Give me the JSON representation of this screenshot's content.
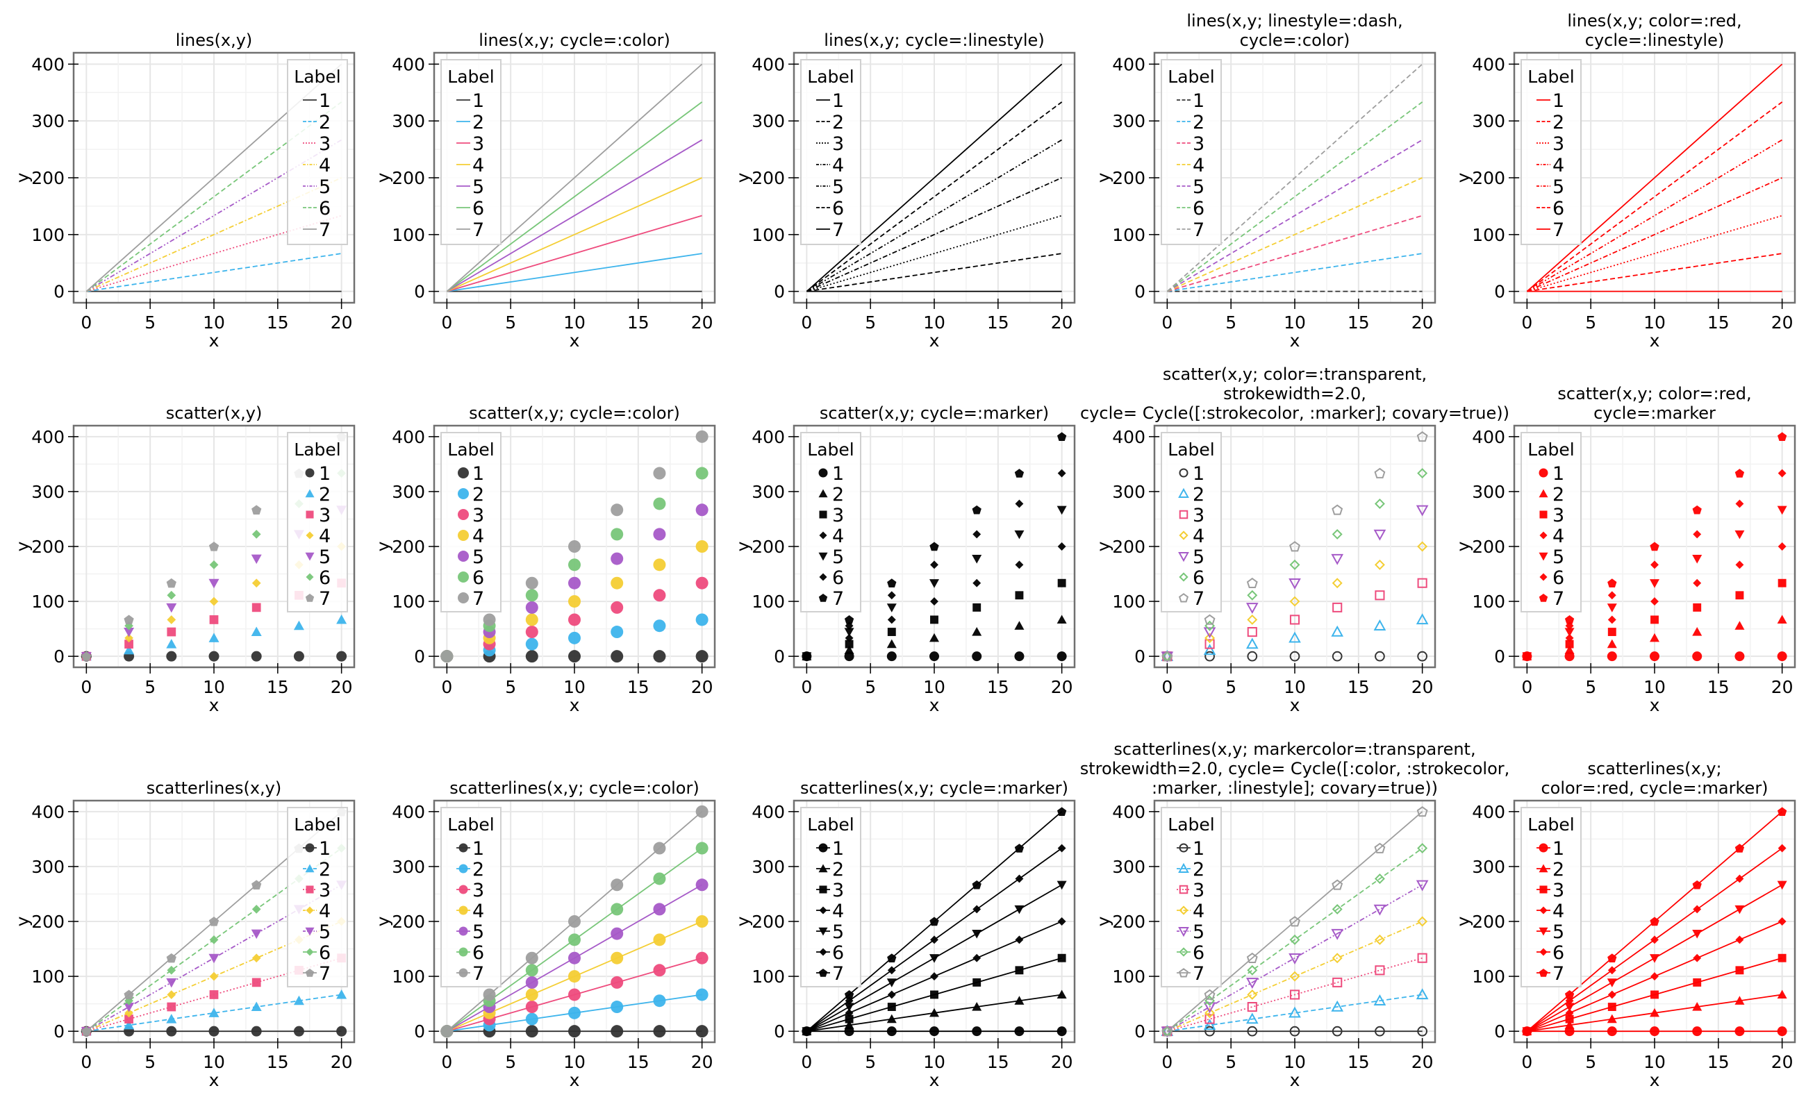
{
  "palette": [
    "#333333",
    "#3DB4EC",
    "#EE4B7D",
    "#F4CE34",
    "#A65AC8",
    "#78C679",
    "#9E9E9E"
  ],
  "red": "#FF0000",
  "black": "#000000",
  "chart_data": {
    "type": "line",
    "grid": true,
    "x": [
      0,
      3.333,
      6.667,
      10,
      13.333,
      16.667,
      20
    ],
    "series": [
      {
        "name": "1",
        "values": [
          0,
          0,
          0,
          0,
          0,
          0,
          0
        ]
      },
      {
        "name": "2",
        "values": [
          0,
          11.11,
          22.22,
          33.33,
          44.44,
          55.56,
          66.67
        ]
      },
      {
        "name": "3",
        "values": [
          0,
          22.22,
          44.44,
          66.67,
          88.89,
          111.11,
          133.33
        ]
      },
      {
        "name": "4",
        "values": [
          0,
          33.33,
          66.67,
          100,
          133.33,
          166.67,
          200
        ]
      },
      {
        "name": "5",
        "values": [
          0,
          44.44,
          88.89,
          133.33,
          177.78,
          222.22,
          266.67
        ]
      },
      {
        "name": "6",
        "values": [
          0,
          55.56,
          111.11,
          166.67,
          222.22,
          277.78,
          333.33
        ]
      },
      {
        "name": "7",
        "values": [
          0,
          66.67,
          133.33,
          200,
          266.67,
          333.33,
          400
        ]
      }
    ],
    "xlabel": "x",
    "ylabel": "y",
    "xlim": [
      -1,
      21
    ],
    "ylim": [
      -20,
      420
    ],
    "xticks": [
      0,
      5,
      10,
      15,
      20
    ],
    "yticks": [
      0,
      100,
      200,
      300,
      400
    ],
    "legend_title": "Label",
    "linestyle_cycle": [
      "solid",
      "dash",
      "dot",
      "dashdot",
      "dashdotdot",
      "dash",
      "solid"
    ],
    "marker_cycle": [
      "circle",
      "utriangle",
      "rect",
      "diamond",
      "dtriangle",
      "diamond",
      "pentagon"
    ],
    "subplots": [
      {
        "title": [
          "lines(x,y)"
        ],
        "kind": "lines",
        "color": "palette",
        "linestyle": "cycle",
        "marker": "none",
        "legend": "top-right"
      },
      {
        "title": [
          "lines(x,y; cycle=:color)"
        ],
        "kind": "lines",
        "color": "palette",
        "linestyle": "solid",
        "marker": "none",
        "legend": "top-left"
      },
      {
        "title": [
          "lines(x,y; cycle=:linestyle)"
        ],
        "kind": "lines",
        "color": "black",
        "linestyle": "cycle",
        "marker": "none",
        "legend": "top-left"
      },
      {
        "title": [
          "lines(x,y; linestyle=:dash,",
          "cycle=:color)"
        ],
        "kind": "lines",
        "color": "palette",
        "linestyle": "dash",
        "marker": "none",
        "legend": "top-left"
      },
      {
        "title": [
          "lines(x,y; color=:red,",
          "cycle=:linestyle)"
        ],
        "kind": "lines",
        "color": "red",
        "linestyle": "cycle",
        "marker": "none",
        "legend": "top-left"
      },
      {
        "title": [
          "scatter(x,y)"
        ],
        "kind": "scatter",
        "color": "palette",
        "linestyle": "none",
        "marker": "cycle",
        "fill": "solid",
        "legend": "top-right"
      },
      {
        "title": [
          "scatter(x,y; cycle=:color)"
        ],
        "kind": "scatter",
        "color": "palette",
        "linestyle": "none",
        "marker": "circle",
        "fill": "solid",
        "legend": "top-left"
      },
      {
        "title": [
          "scatter(x,y; cycle=:marker)"
        ],
        "kind": "scatter",
        "color": "black",
        "linestyle": "none",
        "marker": "cycle",
        "fill": "solid",
        "legend": "top-left"
      },
      {
        "title": [
          "scatter(x,y; color=:transparent,",
          "strokewidth=2.0,",
          "cycle= Cycle([:strokecolor, :marker]; covary=true))"
        ],
        "kind": "scatter",
        "color": "palette",
        "linestyle": "none",
        "marker": "cycle",
        "fill": "hollow",
        "legend": "top-left"
      },
      {
        "title": [
          "scatter(x,y; color=:red,",
          "cycle=:marker"
        ],
        "kind": "scatter",
        "color": "red",
        "linestyle": "none",
        "marker": "cycle",
        "fill": "solid",
        "legend": "top-left"
      },
      {
        "title": [
          "scatterlines(x,y)"
        ],
        "kind": "scatterlines",
        "color": "palette",
        "linestyle": "cycle",
        "marker": "cycle",
        "fill": "solid",
        "legend": "top-right"
      },
      {
        "title": [
          "scatterlines(x,y; cycle=:color)"
        ],
        "kind": "scatterlines",
        "color": "palette",
        "linestyle": "solid",
        "marker": "circle",
        "fill": "solid",
        "legend": "top-left"
      },
      {
        "title": [
          "scatterlines(x,y; cycle=:marker)"
        ],
        "kind": "scatterlines",
        "color": "black",
        "linestyle": "solid",
        "marker": "cycle",
        "fill": "solid",
        "legend": "top-left"
      },
      {
        "title": [
          "scatterlines(x,y; markercolor=:transparent,",
          "strokewidth=2.0, cycle= Cycle([:color, :strokecolor,",
          ":marker, :linestyle]; covary=true))"
        ],
        "kind": "scatterlines",
        "color": "palette",
        "linestyle": "cycle",
        "marker": "cycle",
        "fill": "hollow",
        "legend": "top-left"
      },
      {
        "title": [
          "scatterlines(x,y;",
          "color=:red, cycle=:marker)"
        ],
        "kind": "scatterlines",
        "color": "red",
        "linestyle": "solid",
        "marker": "cycle",
        "fill": "solid",
        "legend": "top-left"
      }
    ]
  }
}
